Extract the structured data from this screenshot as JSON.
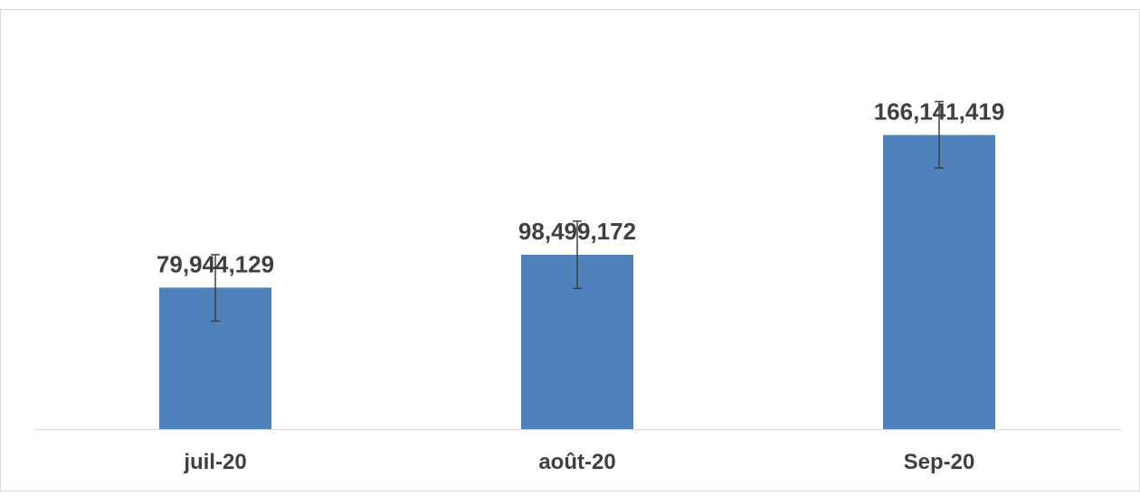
{
  "chart_data": {
    "type": "bar",
    "categories": [
      "juil-20",
      "août-20",
      "Sep-20"
    ],
    "values": [
      79944129,
      98499172,
      166141419
    ],
    "value_labels": [
      "79,944,129",
      "98,499,172",
      "166,141,419"
    ],
    "error_bars": [
      {
        "low": 61000000,
        "high": 98500000
      },
      {
        "low": 79500000,
        "high": 117500000
      },
      {
        "low": 147500000,
        "high": 185000000
      }
    ],
    "title": "",
    "xlabel": "",
    "ylabel": "",
    "ylim": [
      0,
      224000000
    ],
    "grid": false,
    "legend": "none",
    "colors": {
      "bar": "#4F81BD",
      "axis": "#D9D9D9",
      "border": "#D9D9D9",
      "label": "#404040",
      "error_bar": "#404040"
    }
  }
}
